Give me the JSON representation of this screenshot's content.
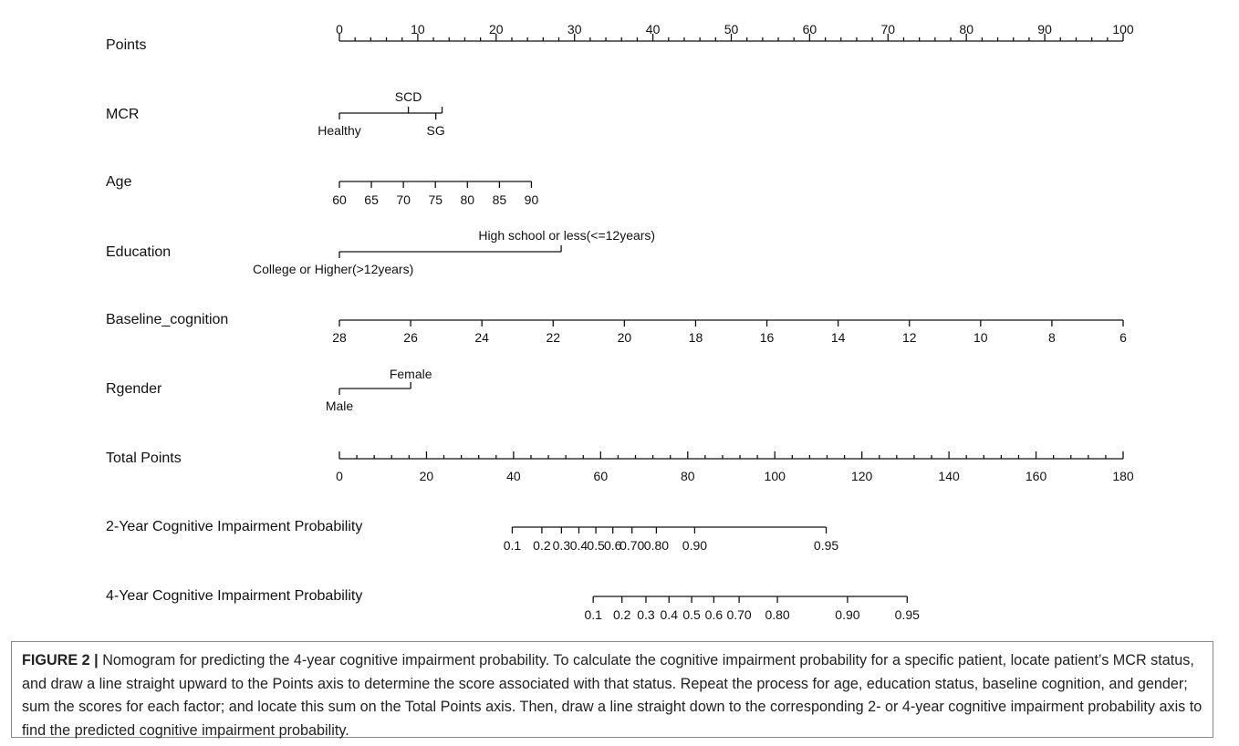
{
  "chart_data": {
    "type": "nomogram",
    "rows": [
      {
        "label": "Points",
        "ticks": [
          "0",
          "10",
          "20",
          "30",
          "40",
          "50",
          "60",
          "70",
          "80",
          "90",
          "100"
        ],
        "range": [
          0,
          100
        ]
      },
      {
        "label": "MCR",
        "categories": [
          {
            "name": "Healthy",
            "points": 0
          },
          {
            "name": "SCD",
            "points": 8.8
          },
          {
            "name": "SG",
            "points": 12.3
          },
          {
            "name": "",
            "points": 13.1
          }
        ]
      },
      {
        "label": "Age",
        "ticks": [
          "60",
          "65",
          "70",
          "75",
          "80",
          "85",
          "90"
        ],
        "points_range": [
          0,
          24.5
        ]
      },
      {
        "label": "Education",
        "categories": [
          {
            "name": "College or Higher(>12years)",
            "points": 0
          },
          {
            "name": "High school or less(<=12years)",
            "points": 28.3
          }
        ]
      },
      {
        "label": "Baseline_cognition",
        "ticks": [
          "28",
          "26",
          "24",
          "22",
          "20",
          "18",
          "16",
          "14",
          "12",
          "10",
          "8",
          "6"
        ],
        "points_range": [
          0,
          100
        ]
      },
      {
        "label": "Rgender",
        "categories": [
          {
            "name": "Male",
            "points": 0
          },
          {
            "name": "Female",
            "points": 9.1
          }
        ]
      },
      {
        "label": "Total Points",
        "ticks": [
          "0",
          "20",
          "40",
          "60",
          "80",
          "100",
          "120",
          "140",
          "160",
          "180"
        ],
        "range": [
          0,
          180
        ]
      },
      {
        "label": "2-Year Cognitive Impairment Probability",
        "ticks": [
          "0.1",
          "0.2",
          "0.3",
          "0.4",
          "0.5",
          "0.6",
          "0.70",
          "0.80",
          "0.90",
          "0.95"
        ],
        "total_points": [
          39.7,
          46.5,
          51.0,
          55.0,
          58.9,
          62.8,
          67.2,
          72.8,
          81.6,
          111.8
        ]
      },
      {
        "label": "4-Year Cognitive Impairment Probability",
        "ticks": [
          "0.1",
          "0.2",
          "0.3",
          "0.4",
          "0.5",
          "0.6",
          "0.70",
          "0.80",
          "0.90",
          "0.95"
        ],
        "total_points": [
          58.3,
          64.9,
          70.4,
          75.7,
          80.9,
          86.0,
          91.8,
          100.6,
          116.7,
          130.4
        ]
      }
    ]
  },
  "caption": {
    "figure_id": "FIGURE 2 |",
    "text": "Nomogram for predicting the 4-year cognitive impairment probability. To calculate the cognitive impairment probability for a specific patient, locate patient’s MCR status, and draw a line straight upward to the Points axis to determine the score associated with that status. Repeat the process for age, education status, baseline cognition, and gender; sum the scores for each factor; and locate this sum on the Total Points axis. Then, draw a line straight down to the corresponding 2- or 4-year cognitive impairment probability axis to find the predicted cognitive impairment probability."
  }
}
